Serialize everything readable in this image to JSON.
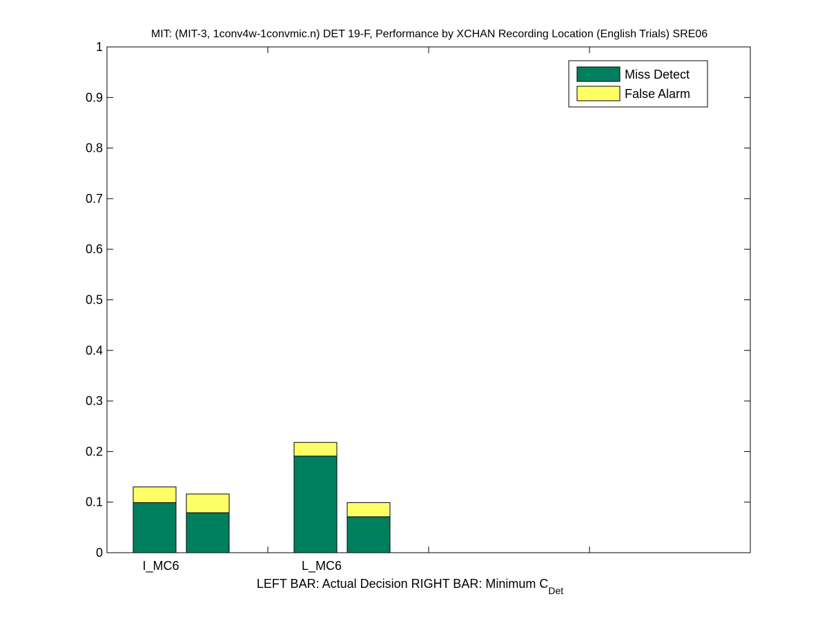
{
  "chart_data": {
    "type": "bar",
    "stacked": true,
    "title": "MIT: (MIT-3, 1conv4w-1convmic.n) DET 19-F,  Performance by XCHAN Recording Location (English Trials) SRE06",
    "xlabel_main": "LEFT BAR: Actual Decision     RIGHT BAR: Minimum C",
    "xlabel_subscript": "Det",
    "ylim": [
      0,
      1
    ],
    "yticks": [
      0,
      0.1,
      0.2,
      0.3,
      0.4,
      0.5,
      0.6,
      0.7,
      0.8,
      0.9,
      1
    ],
    "ytick_labels": [
      "0",
      "0.1",
      "0.2",
      "0.3",
      "0.4",
      "0.5",
      "0.6",
      "0.7",
      "0.8",
      "0.9",
      "1"
    ],
    "categories": [
      "I_MC6",
      "L_MC6"
    ],
    "bars": [
      {
        "category": "I_MC6",
        "position": "left",
        "miss_detect": 0.099,
        "false_alarm": 0.031
      },
      {
        "category": "I_MC6",
        "position": "right",
        "miss_detect": 0.079,
        "false_alarm": 0.037
      },
      {
        "category": "L_MC6",
        "position": "left",
        "miss_detect": 0.191,
        "false_alarm": 0.027
      },
      {
        "category": "L_MC6",
        "position": "right",
        "miss_detect": 0.071,
        "false_alarm": 0.028
      }
    ],
    "series": [
      {
        "name": "Miss Detect",
        "color": "#007f5f"
      },
      {
        "name": "False Alarm",
        "color": "#ffff66"
      }
    ],
    "legend_position": "top-right",
    "grid": false
  }
}
